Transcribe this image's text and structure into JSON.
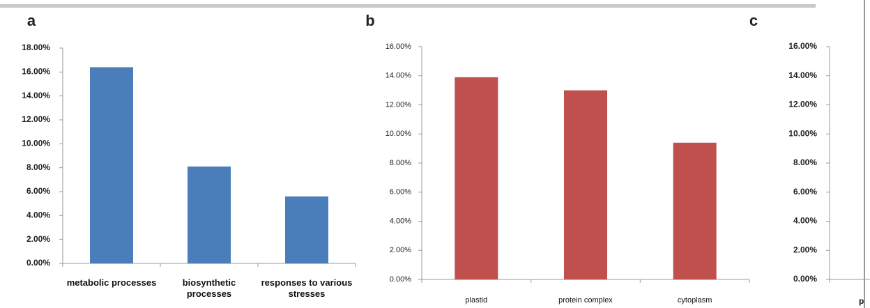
{
  "chart_data": [
    {
      "type": "bar",
      "label": "a",
      "categories": [
        "metabolic processes",
        "biosynthetic processes",
        "responses to various stresses"
      ],
      "values": [
        16.4,
        8.1,
        5.6
      ],
      "color": "#4a7ebb",
      "ylim": [
        0,
        18
      ],
      "yticks": [
        {
          "value": 0,
          "label": "0.00%"
        },
        {
          "value": 2,
          "label": "2.00%"
        },
        {
          "value": 4,
          "label": "4.00%"
        },
        {
          "value": 6,
          "label": "6.00%"
        },
        {
          "value": 8,
          "label": "8.00%"
        },
        {
          "value": 10,
          "label": "10.00%"
        },
        {
          "value": 12,
          "label": "12.00%"
        },
        {
          "value": 14,
          "label": "14.00%"
        },
        {
          "value": 16,
          "label": "16.00%"
        },
        {
          "value": 18,
          "label": "18.00%"
        }
      ]
    },
    {
      "type": "bar",
      "label": "b",
      "categories": [
        "plastid",
        "protein complex",
        "cytoplasm"
      ],
      "values": [
        13.9,
        13.0,
        9.4
      ],
      "color": "#c0504d",
      "ylim": [
        0,
        16
      ],
      "yticks": [
        {
          "value": 0,
          "label": "0.00%"
        },
        {
          "value": 2,
          "label": "2.00%"
        },
        {
          "value": 4,
          "label": "4.00%"
        },
        {
          "value": 6,
          "label": "6.00%"
        },
        {
          "value": 8,
          "label": "8.00%"
        },
        {
          "value": 10,
          "label": "10.00%"
        },
        {
          "value": 12,
          "label": "12.00%"
        },
        {
          "value": 14,
          "label": "14.00%"
        },
        {
          "value": 16,
          "label": "16.00%"
        }
      ]
    },
    {
      "type": "bar",
      "label": "c",
      "categories": [
        "p"
      ],
      "values": [
        null
      ],
      "ylim": [
        0,
        16
      ],
      "yticks": [
        {
          "value": 0,
          "label": "0.00%"
        },
        {
          "value": 2,
          "label": "2.00%"
        },
        {
          "value": 4,
          "label": "4.00%"
        },
        {
          "value": 6,
          "label": "6.00%"
        },
        {
          "value": 8,
          "label": "8.00%"
        },
        {
          "value": 10,
          "label": "10.00%"
        },
        {
          "value": 12,
          "label": "12.00%"
        },
        {
          "value": 14,
          "label": "14.00%"
        },
        {
          "value": 16,
          "label": "16.00%"
        }
      ]
    }
  ]
}
